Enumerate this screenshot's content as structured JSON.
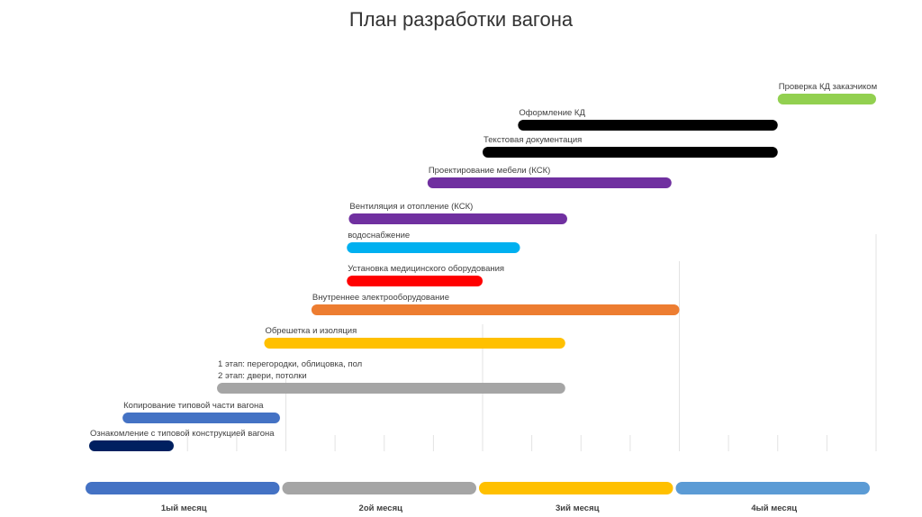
{
  "chart_data": {
    "type": "gantt",
    "title": "План разработки вагона",
    "months": [
      {
        "label": "1ый месяц",
        "color": "#4472C4"
      },
      {
        "label": "2ой месяц",
        "color": "#A5A5A5"
      },
      {
        "label": "3ий месяц",
        "color": "#FFC000"
      },
      {
        "label": "4ый месяц",
        "color": "#5B9BD5"
      }
    ],
    "x_range_months": [
      0,
      4
    ],
    "tasks": [
      {
        "label": "Ознакомление с типовой конструкцией вагона",
        "start": 0.0,
        "end": 0.43,
        "color": "#002060"
      },
      {
        "label": "Копирование типовой части вагона",
        "start": 0.17,
        "end": 0.97,
        "color": "#4472C4"
      },
      {
        "label": "1 этап: перегородки, облицовка, пол",
        "label2": "2 этап: двери, потолки",
        "start": 0.65,
        "end": 2.42,
        "color": "#A5A5A5"
      },
      {
        "label": "Обрешетка и изоляция",
        "start": 0.89,
        "end": 2.42,
        "color": "#FFC000"
      },
      {
        "label": "Внутреннее электрооборудование",
        "start": 1.13,
        "end": 3.0,
        "color": "#ED7D31"
      },
      {
        "label": "Установка медицинского оборудования",
        "start": 1.31,
        "end": 2.0,
        "color": "#FF0000"
      },
      {
        "label": "водоснабжение",
        "start": 1.31,
        "end": 2.19,
        "color": "#00B0F0"
      },
      {
        "label": "Вентиляция и отопление (КСК)",
        "start": 1.32,
        "end": 2.43,
        "color": "#7030A0"
      },
      {
        "label": "Проектирование мебели (КСК)",
        "start": 1.72,
        "end": 2.96,
        "color": "#7030A0"
      },
      {
        "label": "Текстовая документация",
        "start": 2.0,
        "end": 3.5,
        "color": "#000000"
      },
      {
        "label": "Оформление КД",
        "start": 2.18,
        "end": 3.5,
        "color": "#000000"
      },
      {
        "label": "Проверка КД заказчиком",
        "start": 3.5,
        "end": 4.0,
        "color": "#92D050"
      }
    ]
  }
}
